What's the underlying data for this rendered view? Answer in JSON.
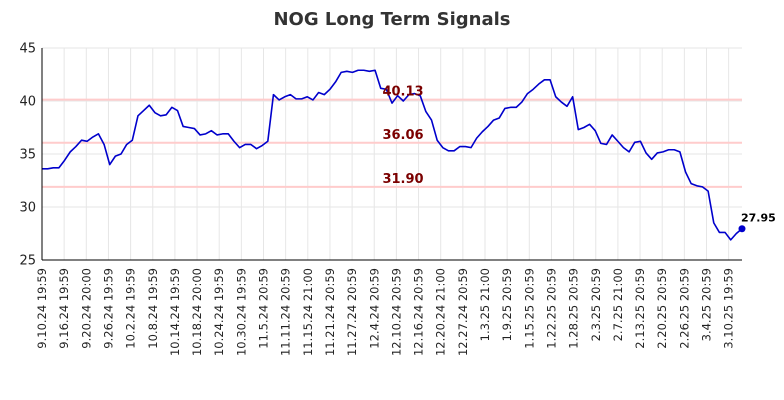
{
  "chart_data": {
    "type": "line",
    "title": "NOG Long Term Signals",
    "xlabel": "",
    "ylabel": "",
    "ylim": [
      25,
      45
    ],
    "yticks": [
      25,
      30,
      35,
      40,
      45
    ],
    "grid": true,
    "xtick_labels": [
      "9.10.24 19:59",
      "9.16.24 19:59",
      "9.20.24 20:00",
      "9.26.24 19:59",
      "10.2.24 19:59",
      "10.8.24 19:59",
      "10.14.24 19:59",
      "10.18.24 20:00",
      "10.24.24 19:59",
      "10.30.24 19:59",
      "11.5.24 20:59",
      "11.11.24 20:59",
      "11.15.24 21:00",
      "11.21.24 20:59",
      "11.27.24 20:59",
      "12.4.24 20:59",
      "12.10.24 20:59",
      "12.16.24 20:59",
      "12.20.24 21:00",
      "12.27.24 20:59",
      "1.3.25 21:00",
      "1.9.25 20:59",
      "1.15.25 20:59",
      "1.22.25 20:59",
      "1.28.25 20:59",
      "2.3.25 20:59",
      "2.7.25 21:00",
      "2.13.25 20:59",
      "2.20.25 20:59",
      "2.26.25 20:59",
      "3.4.25 20:59",
      "3.10.25 19:59"
    ],
    "levels": [
      {
        "value": 40.13,
        "label": "40.13",
        "line_color": "#ffcccc",
        "label_color": "#7b0000"
      },
      {
        "value": 36.06,
        "label": "36.06",
        "line_color": "#ffcccc",
        "label_color": "#7b0000"
      },
      {
        "value": 31.9,
        "label": "31.90",
        "line_color": "#ffcccc",
        "label_color": "#7b0000"
      }
    ],
    "series": [
      {
        "color": "#0000cc",
        "values": [
          33.6,
          33.6,
          33.7,
          33.7,
          34.4,
          35.2,
          35.7,
          36.3,
          36.2,
          36.6,
          36.9,
          35.9,
          34.0,
          34.8,
          35.0,
          35.9,
          36.3,
          38.6,
          39.1,
          39.6,
          38.9,
          38.6,
          38.7,
          39.4,
          39.1,
          37.6,
          37.5,
          37.4,
          36.8,
          36.9,
          37.2,
          36.8,
          36.9,
          36.9,
          36.2,
          35.6,
          35.9,
          35.9,
          35.5,
          35.8,
          36.2,
          40.6,
          40.1,
          40.4,
          40.6,
          40.2,
          40.2,
          40.4,
          40.1,
          40.8,
          40.6,
          41.1,
          41.8,
          42.7,
          42.8,
          42.7,
          42.9,
          42.9,
          42.8,
          42.9,
          41.2,
          41.1,
          39.8,
          40.5,
          40.0,
          40.6,
          40.7,
          40.5,
          39.0,
          38.2,
          36.3,
          35.6,
          35.3,
          35.3,
          35.7,
          35.7,
          35.6,
          36.5,
          37.1,
          37.6,
          38.2,
          38.4,
          39.3,
          39.4,
          39.4,
          39.9,
          40.7,
          41.1,
          41.6,
          42.0,
          42.0,
          40.4,
          39.9,
          39.5,
          40.4,
          37.3,
          37.5,
          37.8,
          37.2,
          36.0,
          35.9,
          36.8,
          36.2,
          35.6,
          35.2,
          36.1,
          36.2,
          35.1,
          34.5,
          35.1,
          35.2,
          35.4,
          35.4,
          35.2,
          33.3,
          32.2,
          32.0,
          31.9,
          31.5,
          28.5,
          27.6,
          27.6,
          26.9,
          27.5,
          27.95
        ]
      }
    ],
    "last_value_label": "27.95"
  }
}
